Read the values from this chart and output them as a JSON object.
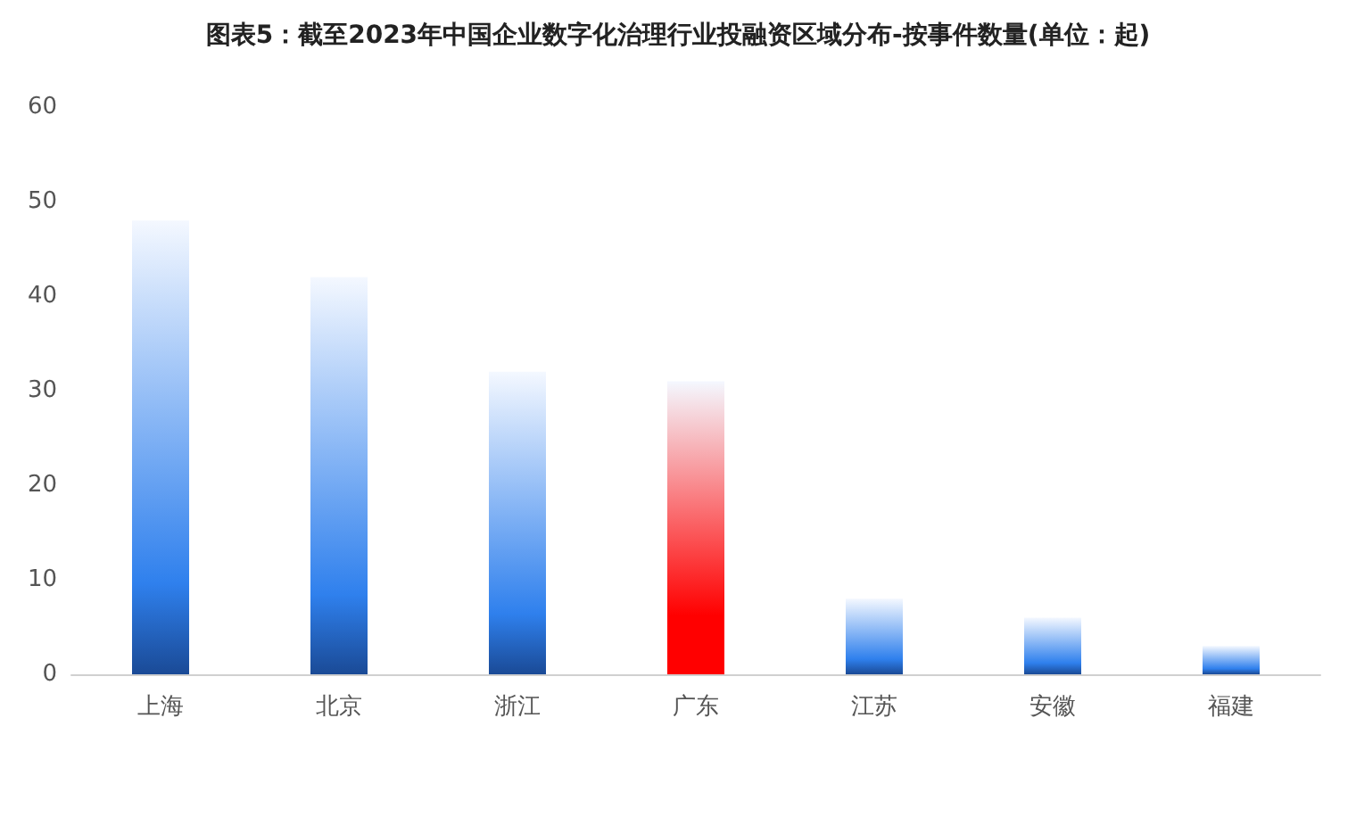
{
  "chart_data": {
    "type": "bar",
    "title": "图表5：截至2023年中国企业数字化治理行业投融资区域分布-按事件数量(单位：起)",
    "categories": [
      "上海",
      "北京",
      "浙江",
      "广东",
      "江苏",
      "安徽",
      "福建"
    ],
    "values": [
      48,
      42,
      32,
      31,
      8,
      6,
      3
    ],
    "colors": [
      "#2f80ed",
      "#2f80ed",
      "#2f80ed",
      "#ff0000",
      "#2f80ed",
      "#2f80ed",
      "#2f80ed"
    ],
    "ylim": [
      0,
      60
    ],
    "yticks": [
      0,
      10,
      20,
      30,
      40,
      50,
      60
    ],
    "grid": false
  }
}
